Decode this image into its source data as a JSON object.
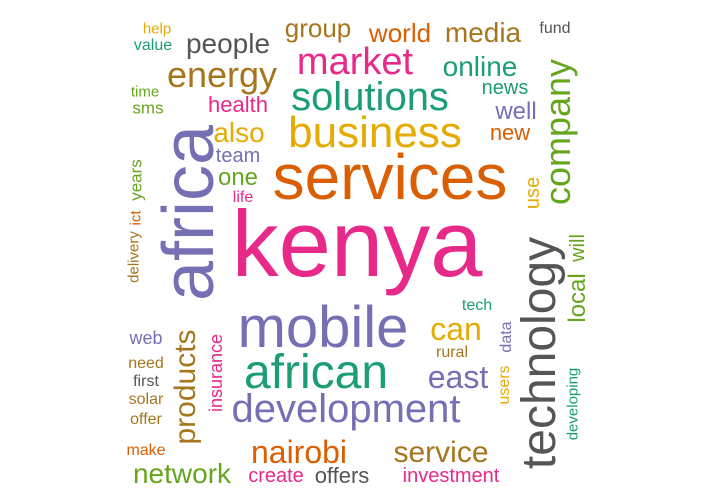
{
  "palette": {
    "magenta": "#e7298a",
    "purple": "#7570b3",
    "green": "#1b9e77",
    "orange": "#d95f02",
    "gold": "#e6ab02",
    "olive": "#66a61e",
    "brown": "#a6761d",
    "gray": "#555555"
  },
  "words": [
    {
      "text": "kenya"
    },
    {
      "text": "africa"
    },
    {
      "text": "services"
    },
    {
      "text": "mobile"
    },
    {
      "text": "technology"
    },
    {
      "text": "business"
    },
    {
      "text": "african"
    },
    {
      "text": "development"
    },
    {
      "text": "solutions"
    },
    {
      "text": "market"
    },
    {
      "text": "company"
    },
    {
      "text": "energy"
    },
    {
      "text": "products"
    },
    {
      "text": "nairobi"
    },
    {
      "text": "service"
    },
    {
      "text": "network"
    },
    {
      "text": "east"
    },
    {
      "text": "can"
    },
    {
      "text": "people"
    },
    {
      "text": "online"
    },
    {
      "text": "media"
    },
    {
      "text": "world"
    },
    {
      "text": "group"
    },
    {
      "text": "also"
    },
    {
      "text": "health"
    },
    {
      "text": "news"
    },
    {
      "text": "well"
    },
    {
      "text": "new"
    },
    {
      "text": "one"
    },
    {
      "text": "team"
    },
    {
      "text": "life"
    },
    {
      "text": "use"
    },
    {
      "text": "local"
    },
    {
      "text": "will"
    },
    {
      "text": "tech"
    },
    {
      "text": "data"
    },
    {
      "text": "users"
    },
    {
      "text": "rural"
    },
    {
      "text": "insurance"
    },
    {
      "text": "web"
    },
    {
      "text": "need"
    },
    {
      "text": "first"
    },
    {
      "text": "solar"
    },
    {
      "text": "offer"
    },
    {
      "text": "make"
    },
    {
      "text": "create"
    },
    {
      "text": "offers"
    },
    {
      "text": "investment"
    },
    {
      "text": "developing"
    },
    {
      "text": "delivery"
    },
    {
      "text": "ict"
    },
    {
      "text": "years"
    },
    {
      "text": "time"
    },
    {
      "text": "sms"
    },
    {
      "text": "help"
    },
    {
      "text": "value"
    },
    {
      "text": "fund"
    }
  ]
}
